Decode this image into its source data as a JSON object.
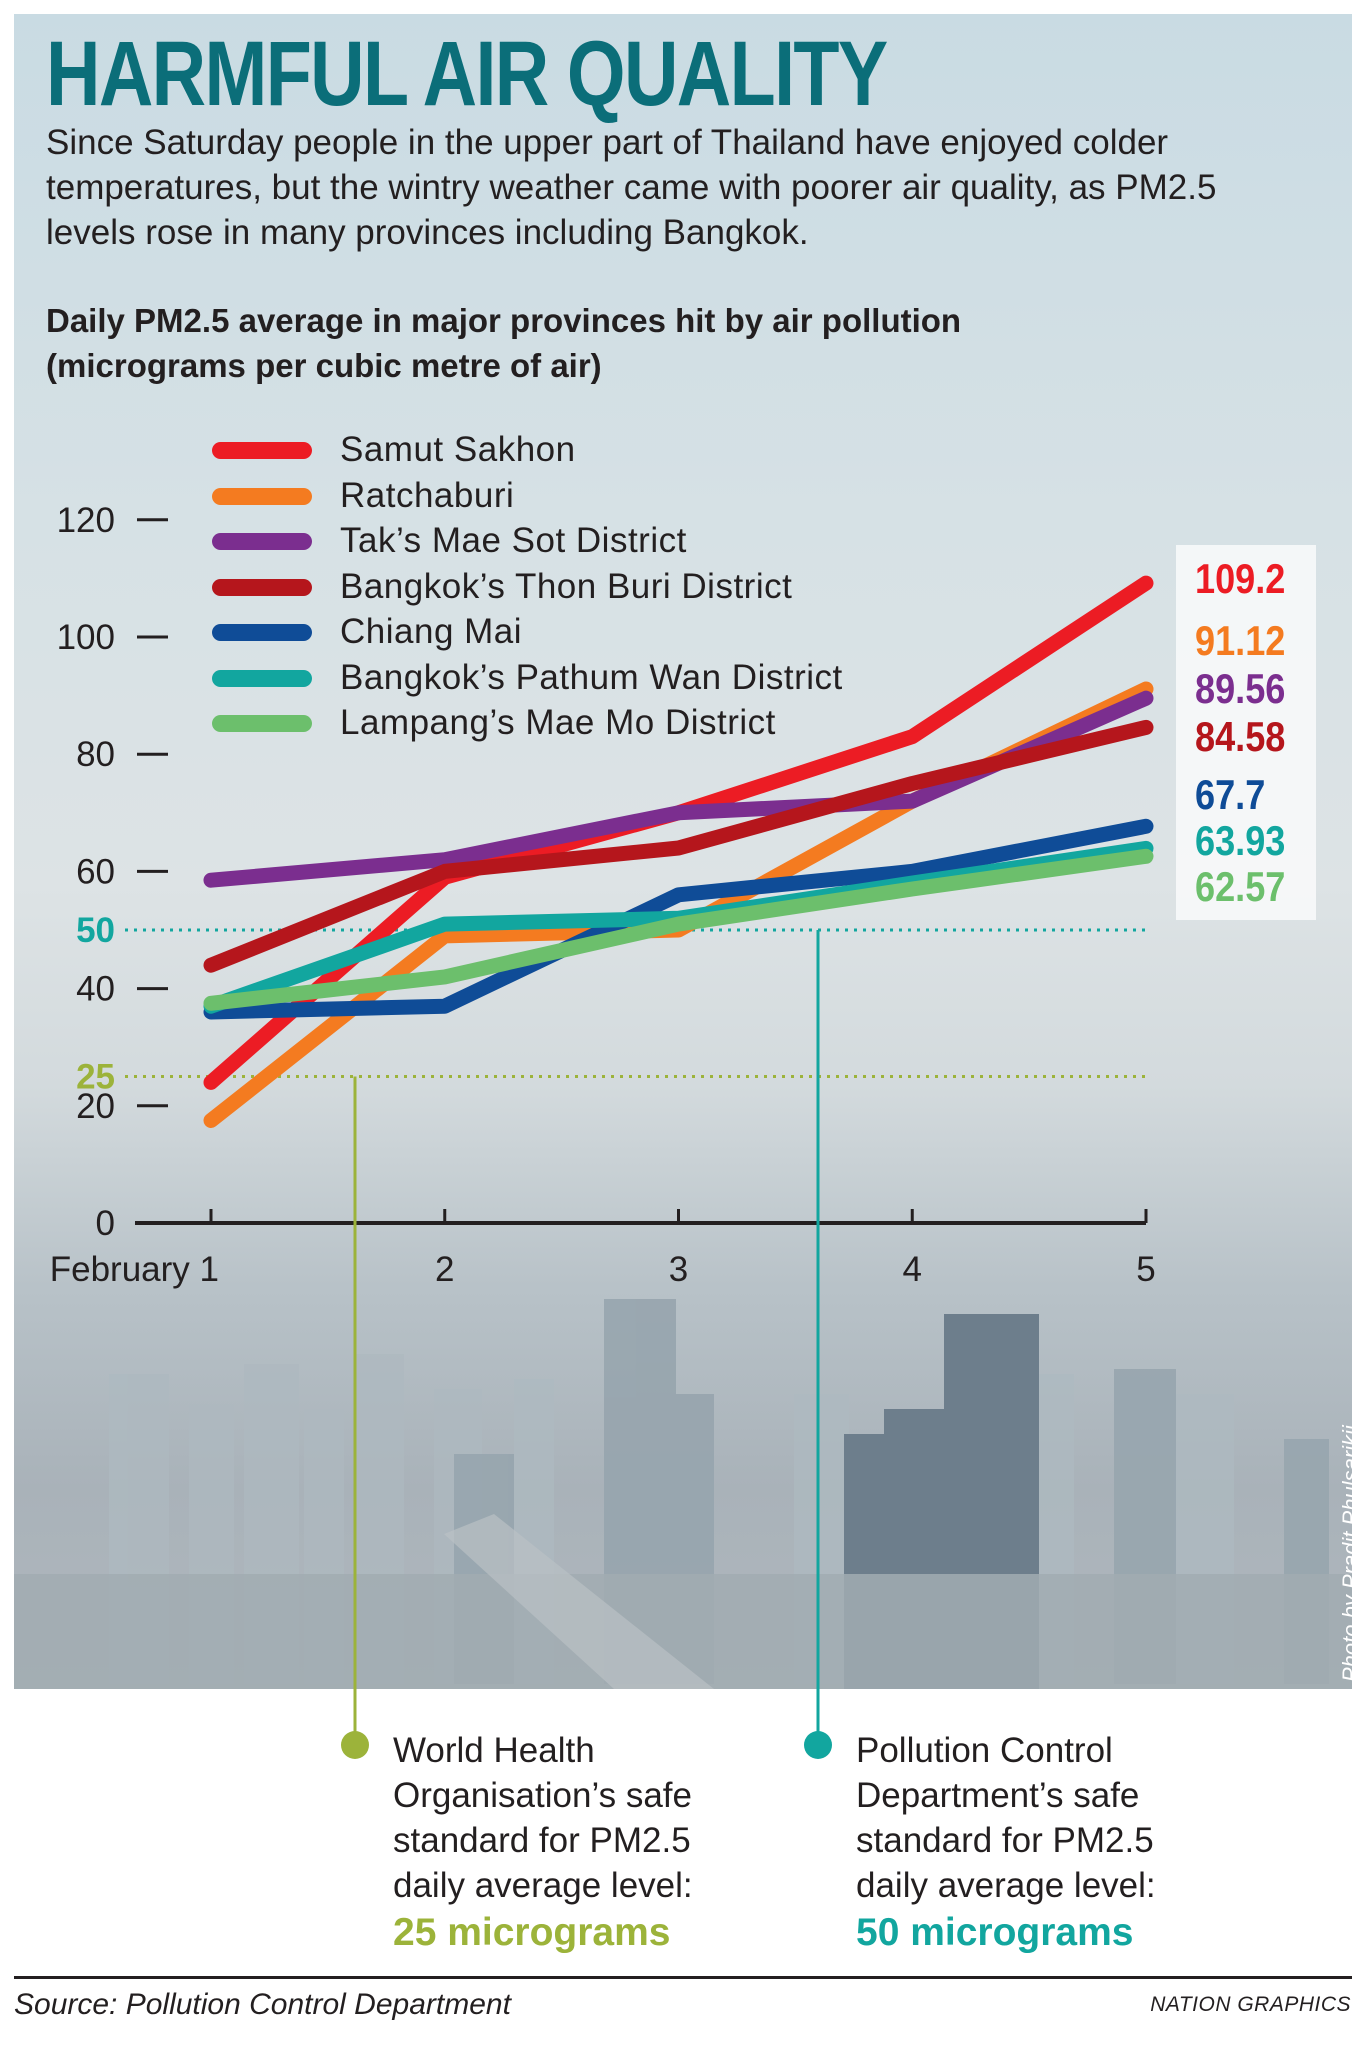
{
  "header": {
    "title": "HARMFUL AIR QUALITY",
    "intro": "Since Saturday people in the upper part of Thailand have enjoyed colder temperatures, but the wintry weather came with poorer air quality, as PM2.5 levels rose in many provinces including Bangkok.",
    "subtitle_line1": "Daily PM2.5 average in major provinces hit by air pollution",
    "subtitle_line2": "(micrograms per cubic metre of air)"
  },
  "chart_data": {
    "type": "line",
    "title": "Daily PM2.5 average in major provinces hit by air pollution (micrograms per cubic metre of air)",
    "x": [
      1,
      2,
      3,
      4,
      5
    ],
    "x_tick_labels": [
      "February 1",
      "2",
      "3",
      "4",
      "5"
    ],
    "y_ticks": [
      0,
      20,
      40,
      60,
      80,
      100,
      120
    ],
    "ylim": [
      0,
      125
    ],
    "grid": false,
    "legend_position": "top-left",
    "series": [
      {
        "name": "Samut Sakhon",
        "color": "#ec1c24",
        "values": [
          24,
          59,
          70,
          83,
          109.2
        ],
        "end_label": "109.2"
      },
      {
        "name": "Ratchaburi",
        "color": "#f47b20",
        "values": [
          17.5,
          49,
          50,
          72,
          91.12
        ],
        "end_label": "91.12"
      },
      {
        "name": "Tak’s Mae Sot District",
        "color": "#7b2e8f",
        "values": [
          58.5,
          62,
          70,
          72,
          89.56
        ],
        "end_label": "89.56"
      },
      {
        "name": "Bangkok’s Thon Buri District",
        "color": "#b5161c",
        "values": [
          44,
          60,
          64,
          75,
          84.58
        ],
        "end_label": "84.58"
      },
      {
        "name": "Chiang Mai",
        "color": "#0f4c97",
        "values": [
          36,
          37,
          56,
          60,
          67.7
        ],
        "end_label": "67.7"
      },
      {
        "name": "Bangkok’s Pathum Wan District",
        "color": "#12a69f",
        "values": [
          37,
          51,
          52,
          58,
          63.93
        ],
        "end_label": "63.93"
      },
      {
        "name": "Lampang’s Mae Mo District",
        "color": "#6cbf6c",
        "values": [
          37.5,
          42,
          51,
          57,
          62.57
        ],
        "end_label": "62.57"
      }
    ],
    "reference_lines": [
      {
        "value": 50,
        "label": "50",
        "color": "#12a69f",
        "style": "dotted"
      },
      {
        "value": 25,
        "label": "25",
        "color": "#9cb33a",
        "style": "dotted"
      }
    ]
  },
  "notes": [
    {
      "line1": "World Health",
      "line2": "Organisation’s safe",
      "line3": "standard for PM2.5",
      "line4": "daily average level:",
      "amount": "25 micrograms",
      "color": "#9cb33a"
    },
    {
      "line1": "Pollution Control",
      "line2": "Department’s safe",
      "line3": "standard for PM2.5",
      "line4": "daily average level:",
      "amount": "50 micrograms",
      "color": "#12a69f"
    }
  ],
  "photo_credit": "Photo by Pradit Phulsarikij",
  "footer": {
    "source": "Source: Pollution Control Department",
    "brand": "NATION GRAPHICS"
  }
}
